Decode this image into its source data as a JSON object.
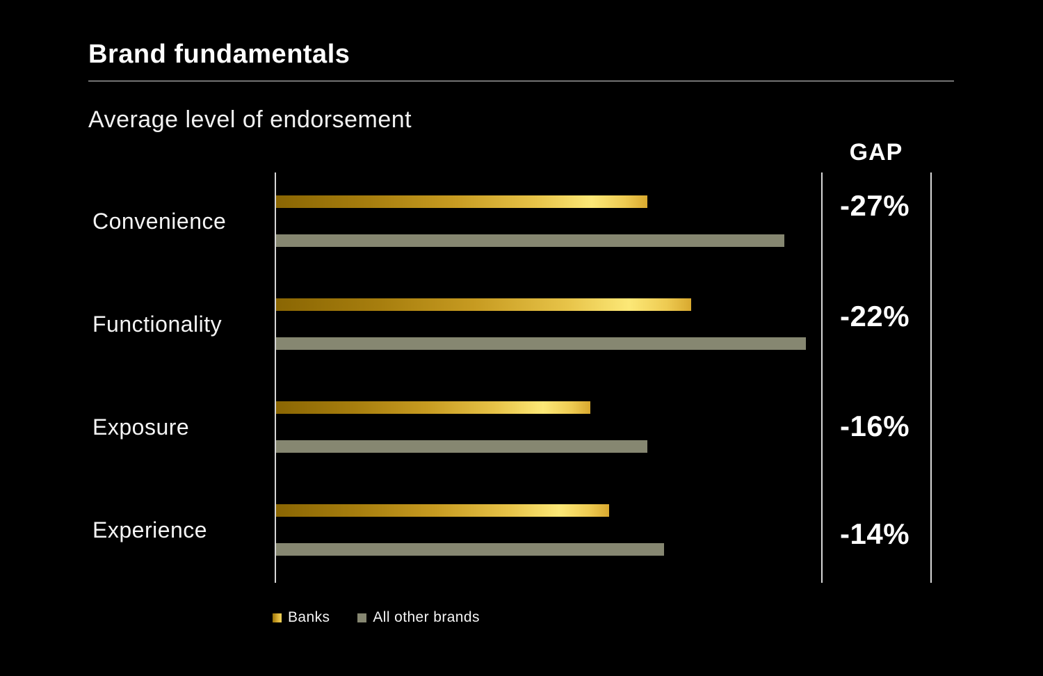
{
  "page": {
    "title": "Brand fundamentals",
    "subtitle": "Average level of endorsement"
  },
  "gap_column": {
    "header": "GAP",
    "values": [
      "-27%",
      "-22%",
      "-16%",
      "-14%"
    ]
  },
  "legend": {
    "items": [
      {
        "label": "Banks",
        "swatch": "gold-gradient"
      },
      {
        "label": "All other brands",
        "swatch": "olive-gray"
      }
    ]
  },
  "colors": {
    "background": "#000000",
    "text": "#ffffff",
    "rule_and_axis_lines": "#d8d8d8",
    "banks_gold_dark": "#8a6603",
    "banks_gold_bright": "#fce877",
    "banks_gold_tip": "#d9a92f",
    "other_brands_gray": "#868771"
  },
  "chart_data": {
    "type": "bar",
    "orientation": "horizontal",
    "title": "Brand fundamentals",
    "subtitle": "Average level of endorsement",
    "categories": [
      "Convenience",
      "Functionality",
      "Exposure",
      "Experience"
    ],
    "series": [
      {
        "name": "Banks",
        "values": [
          68,
          76,
          57.5,
          61
        ]
      },
      {
        "name": "All other brands",
        "values": [
          93,
          97,
          68,
          71
        ]
      }
    ],
    "gap_labels": [
      "-27%",
      "-22%",
      "-16%",
      "-14%"
    ],
    "xlim": [
      0,
      100
    ],
    "value_note": "No numeric bar labels shown; values estimated as % of plot width from bar lengths",
    "grid": false,
    "legend_position": "bottom"
  }
}
